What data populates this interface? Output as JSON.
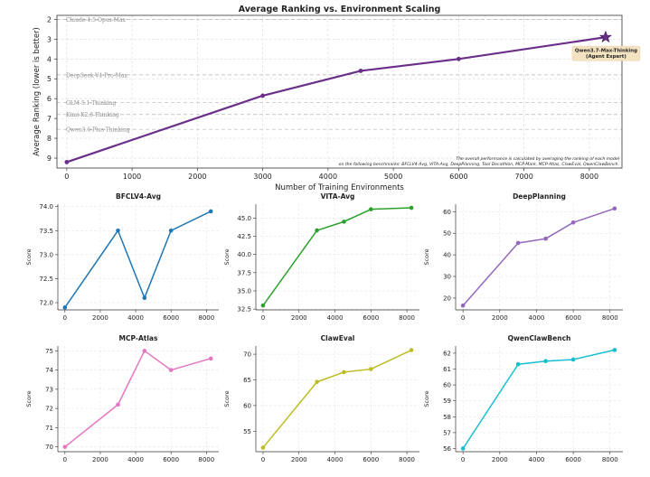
{
  "chart_data": [
    {
      "type": "line",
      "title": "Average Ranking vs. Environment Scaling",
      "xlabel": "Number of Training Environments",
      "ylabel": "Average Ranking (lower is better)",
      "x": [
        0,
        3000,
        4500,
        6000,
        8250
      ],
      "values": [
        9.2,
        5.85,
        4.6,
        4.0,
        2.9
      ],
      "xlim": [
        -150,
        8500
      ],
      "ylim": [
        9.5,
        1.8
      ],
      "y_inverted": true,
      "xticks": [
        0,
        1000,
        2000,
        3000,
        4000,
        5000,
        6000,
        7000,
        8000
      ],
      "yticks": [
        2,
        3,
        4,
        5,
        6,
        7,
        8,
        9
      ],
      "color": "#6a2f8a",
      "highlight_label": "Qwen3.7-Max-Thinking\n(Agent Expert)",
      "reference_lines": [
        {
          "label": "Claude-4.5-Opus-Max",
          "value": 2.0
        },
        {
          "label": "DeepSeek-V4-Pro-Max",
          "value": 4.8
        },
        {
          "label": "GLM-5.1-Thinking",
          "value": 6.2
        },
        {
          "label": "Kimi-K2.6-Thinking",
          "value": 6.8
        },
        {
          "label": "Qwen3.6-Plus-Thinking",
          "value": 7.55
        }
      ],
      "footnote": "The overall performance is calculated by averaging the ranking of each model\non the following benchmarks: BFCLV4-Avg, VITA-Avg, DeepPlanning, Tool Decathlon, MCP-Mark, MCP-Atlas, ClawEval, QwenClawBench.",
      "grid": true
    },
    {
      "type": "line",
      "title": "BFCLV4-Avg",
      "xlabel": "",
      "ylabel": "Score",
      "x": [
        0,
        3000,
        4500,
        6000,
        8250
      ],
      "values": [
        71.9,
        73.5,
        72.1,
        73.5,
        73.9
      ],
      "xlim": [
        -400,
        8700
      ],
      "ylim": [
        71.85,
        74.05
      ],
      "yticks": [
        "72.0",
        "72.5",
        "73.0",
        "73.5",
        "74.0"
      ],
      "xticks": [
        0,
        2000,
        4000,
        6000,
        8000
      ],
      "color": "#1f77b4"
    },
    {
      "type": "line",
      "title": "VITA-Avg",
      "xlabel": "",
      "ylabel": "Score",
      "x": [
        0,
        3000,
        4500,
        6000,
        8250
      ],
      "values": [
        33.0,
        43.3,
        44.5,
        46.2,
        46.4
      ],
      "xlim": [
        -400,
        8700
      ],
      "ylim": [
        32.4,
        46.9
      ],
      "yticks": [
        "32.5",
        "35.0",
        "37.5",
        "40.0",
        "42.5",
        "45.0"
      ],
      "xticks": [
        0,
        2000,
        4000,
        6000,
        8000
      ],
      "color": "#2ca02c"
    },
    {
      "type": "line",
      "title": "DeepPlanning",
      "xlabel": "",
      "ylabel": "Score",
      "x": [
        0,
        3000,
        4500,
        6000,
        8250
      ],
      "values": [
        16.5,
        45.5,
        47.5,
        55.0,
        61.5
      ],
      "xlim": [
        -400,
        8700
      ],
      "ylim": [
        14.5,
        63.5
      ],
      "yticks": [
        "20",
        "30",
        "40",
        "50",
        "60"
      ],
      "xticks": [
        0,
        2000,
        4000,
        6000,
        8000
      ],
      "color": "#9467bd"
    },
    {
      "type": "line",
      "title": "MCP-Atlas",
      "xlabel": "",
      "ylabel": "Score",
      "x": [
        0,
        3000,
        4500,
        6000,
        8250
      ],
      "values": [
        70.0,
        72.2,
        75.0,
        74.0,
        74.6
      ],
      "xlim": [
        -400,
        8700
      ],
      "ylim": [
        69.75,
        75.25
      ],
      "yticks": [
        "70",
        "71",
        "72",
        "73",
        "74",
        "75"
      ],
      "xticks": [
        0,
        2000,
        4000,
        6000,
        8000
      ],
      "color": "#e377c2"
    },
    {
      "type": "line",
      "title": "ClawEval",
      "xlabel": "",
      "ylabel": "Score",
      "x": [
        0,
        3000,
        4500,
        6000,
        8250
      ],
      "values": [
        51.8,
        64.6,
        66.5,
        67.1,
        70.8
      ],
      "xlim": [
        -400,
        8700
      ],
      "ylim": [
        51.0,
        71.6
      ],
      "yticks": [
        "55",
        "60",
        "65",
        "70"
      ],
      "xticks": [
        0,
        2000,
        4000,
        6000,
        8000
      ],
      "color": "#bcbd22"
    },
    {
      "type": "line",
      "title": "QwenClawBench",
      "xlabel": "",
      "ylabel": "Score",
      "x": [
        0,
        3000,
        4500,
        6000,
        8250
      ],
      "values": [
        56.0,
        61.3,
        61.5,
        61.6,
        62.2
      ],
      "xlim": [
        -400,
        8700
      ],
      "ylim": [
        55.8,
        62.45
      ],
      "yticks": [
        "56",
        "57",
        "58",
        "59",
        "60",
        "61",
        "62"
      ],
      "xticks": [
        0,
        2000,
        4000,
        6000,
        8000
      ],
      "color": "#17becf"
    }
  ]
}
